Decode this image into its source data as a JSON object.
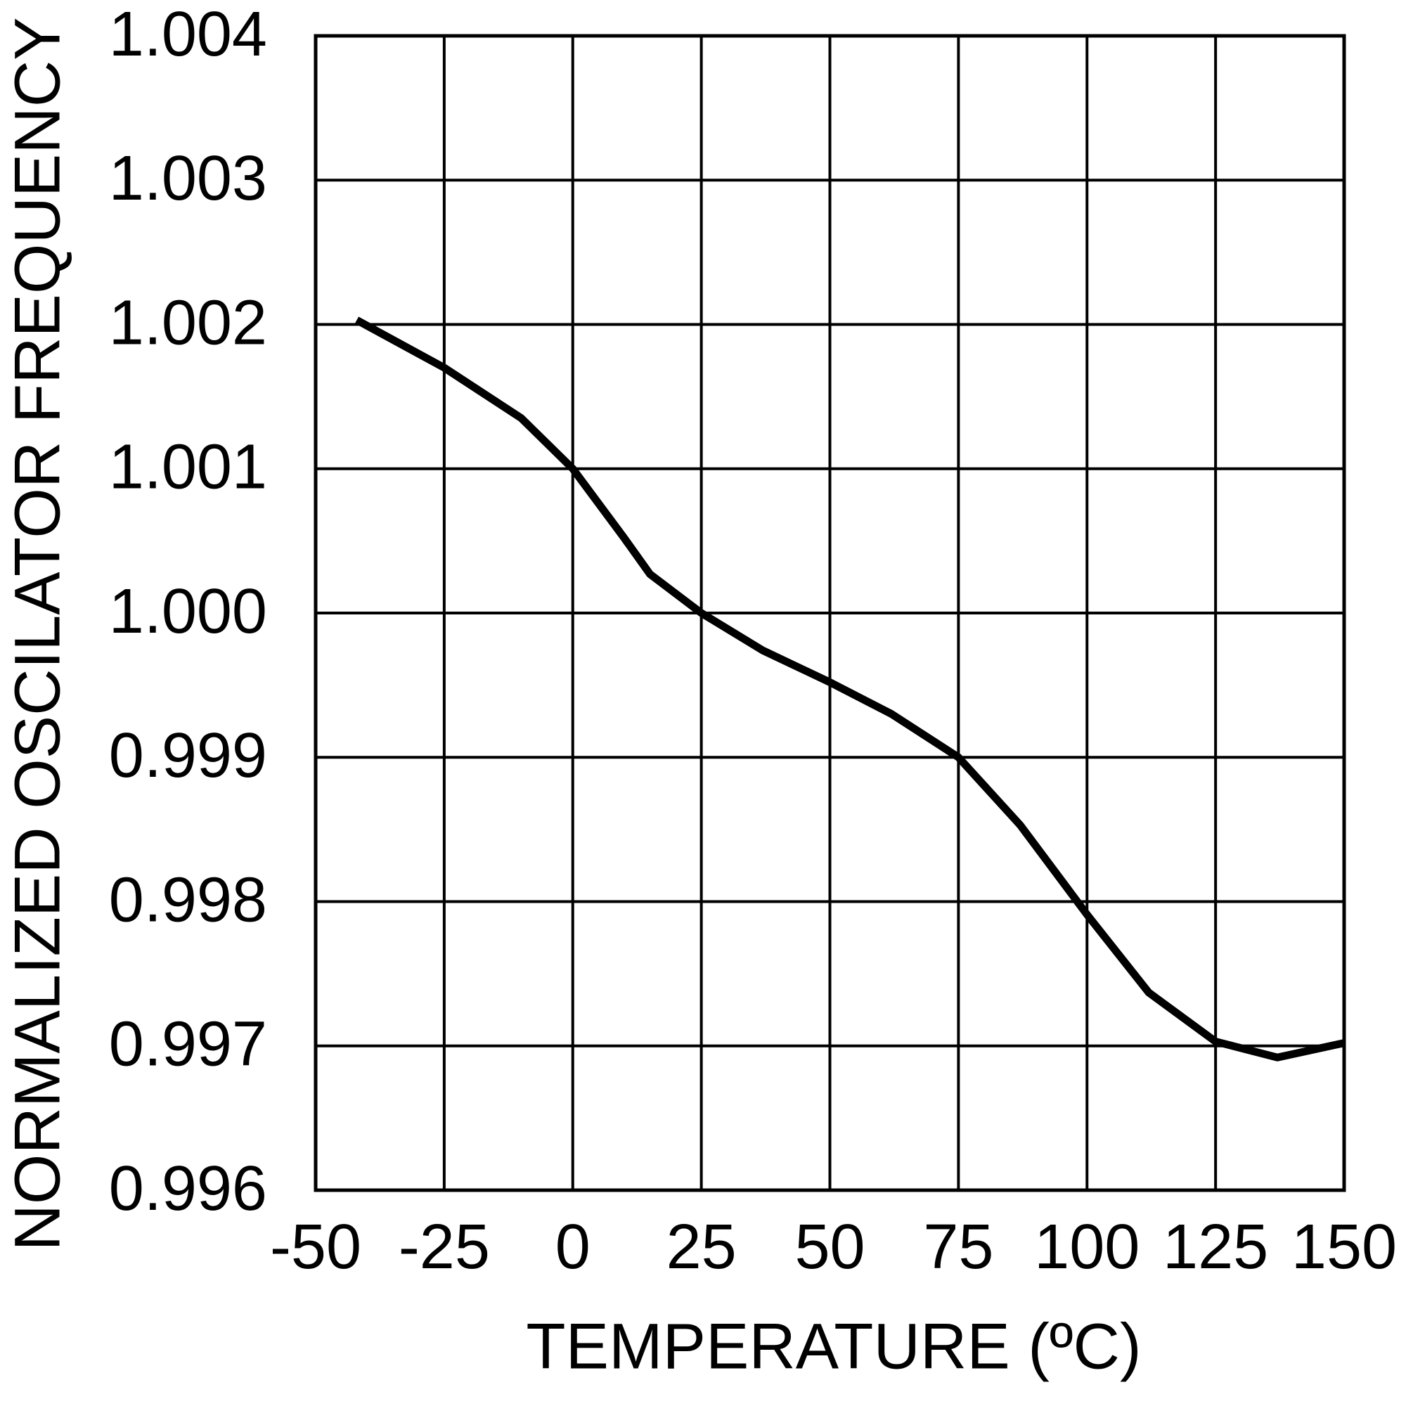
{
  "chart_data": {
    "type": "line",
    "x_label": "TEMPERATURE (ºC)",
    "y_label": "NORMALIZED OSCILATOR FREQUENCY",
    "x": [
      -42,
      -25,
      -10,
      0,
      10,
      15,
      25,
      37,
      50,
      62,
      75,
      87,
      100,
      112,
      125,
      137,
      150
    ],
    "values": [
      1.00203,
      1.0017,
      1.00135,
      1.001,
      1.00052,
      1.00027,
      1.0,
      0.99974,
      0.99952,
      0.9993,
      0.999,
      0.99853,
      0.99791,
      0.99737,
      0.99703,
      0.99692,
      0.99702
    ],
    "color": "#000000",
    "xlim": [
      -50,
      150
    ],
    "xticks": [
      -50,
      -25,
      0,
      25,
      50,
      75,
      100,
      125,
      150
    ],
    "ylim": [
      0.996,
      1.004
    ],
    "yticks": [
      0.996,
      0.997,
      0.998,
      0.999,
      {
        "value": 1,
        "label": "1.000"
      },
      1.001,
      1.002,
      1.003,
      1.004
    ],
    "grid": true
  }
}
